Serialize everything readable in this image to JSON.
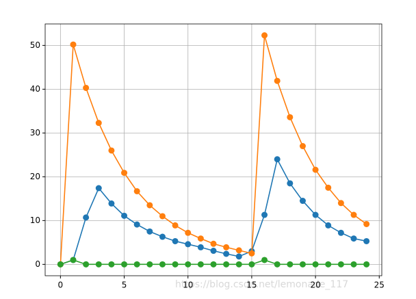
{
  "chart_data": {
    "type": "line",
    "x": [
      0,
      1,
      2,
      3,
      4,
      5,
      6,
      7,
      8,
      9,
      10,
      11,
      12,
      13,
      14,
      15,
      16,
      17,
      18,
      19,
      20,
      21,
      22,
      23,
      24
    ],
    "series": [
      {
        "color": "#1f77b4",
        "values": [
          0,
          1.0,
          10.7,
          17.4,
          13.9,
          11.1,
          9.1,
          7.5,
          6.3,
          5.3,
          4.6,
          3.9,
          3.1,
          2.4,
          1.8,
          3.0,
          11.3,
          24.0,
          18.5,
          14.5,
          11.3,
          8.9,
          7.2,
          5.9,
          5.3
        ]
      },
      {
        "color": "#ff7f0e",
        "values": [
          0,
          50.2,
          40.3,
          32.3,
          26.0,
          20.9,
          16.7,
          13.5,
          11.0,
          8.9,
          7.2,
          5.9,
          4.7,
          3.9,
          3.2,
          2.5,
          52.3,
          41.9,
          33.6,
          27.0,
          21.6,
          17.5,
          14.0,
          11.3,
          9.2
        ]
      },
      {
        "color": "#2ca02c",
        "values": [
          0,
          1.0,
          0,
          0,
          0,
          0,
          0,
          0,
          0,
          0,
          0,
          0,
          0,
          0,
          0,
          0,
          1.0,
          0,
          0,
          0,
          0,
          0,
          0,
          0,
          0
        ]
      }
    ],
    "xlim": [
      -1.2,
      25.2
    ],
    "xticks": [
      0,
      5,
      10,
      15,
      20,
      25
    ],
    "ylim": [
      -2.6,
      54.9
    ],
    "yticks": [
      0,
      10,
      20,
      30,
      40,
      50
    ],
    "grid": true,
    "annotation": "https://blog.csdn.net/lemonade_117"
  }
}
